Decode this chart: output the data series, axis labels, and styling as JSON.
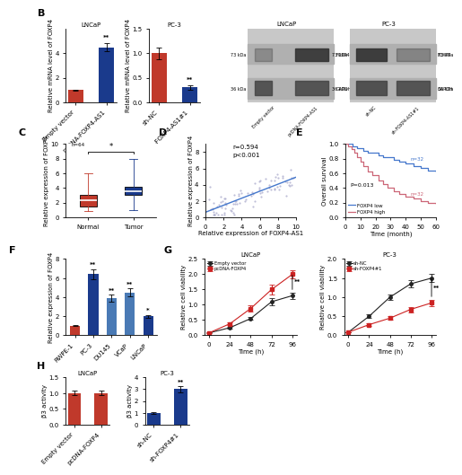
{
  "panel_A_LNCaP": {
    "categories": [
      "Empty vector",
      "pcDNA-FOXP4-AS1"
    ],
    "values": [
      1.0,
      4.5
    ],
    "errors": [
      0.05,
      0.35
    ],
    "colors": [
      "#c0392b",
      "#1a3a8c"
    ],
    "ylabel": "Relative mRNA level of FOXP4",
    "title": "LNCaP",
    "ylim": [
      0,
      6
    ],
    "yticks": [
      0,
      2,
      4
    ],
    "sig": "**"
  },
  "panel_A_PC3": {
    "categories": [
      "sh-NC",
      "sh-FOXP4-AS1#1"
    ],
    "values": [
      1.0,
      0.3
    ],
    "errors": [
      0.12,
      0.04
    ],
    "colors": [
      "#c0392b",
      "#1a3a8c"
    ],
    "ylabel": "Relative mRNA level of FOXP4",
    "title": "PC-3",
    "ylim": [
      0,
      1.5
    ],
    "yticks": [
      0.0,
      0.5,
      1.0,
      1.5
    ],
    "sig": "**"
  },
  "panel_C": {
    "normal_box": {
      "whislo": 0.8,
      "q1": 1.5,
      "med": 2.3,
      "q3": 3.0,
      "whishi": 6.0
    },
    "tumor_box": {
      "whislo": 1.0,
      "q1": 3.0,
      "med": 3.5,
      "q3": 4.2,
      "whishi": 8.0
    },
    "normal_color": "#c0392b",
    "tumor_color": "#1a3a8c",
    "ylabel": "Relative expression of FOXP4",
    "ylim": [
      0,
      10
    ],
    "yticks": [
      0,
      2,
      4,
      6,
      8,
      10
    ],
    "n_label": "n=64",
    "sig": "*"
  },
  "panel_D": {
    "r": 0.594,
    "p": "<0.001",
    "xlabel": "Relative expression of FOXP4-AS1",
    "ylabel": "Relative expression of FOXP4",
    "xlim": [
      0.0,
      10
    ],
    "ylim": [
      0.0,
      9
    ],
    "xticks": [
      0,
      2,
      4,
      6,
      8,
      10
    ],
    "yticks": [
      0,
      2,
      4,
      6,
      8
    ],
    "scatter_color": "#aaaacc",
    "line_color": "#4477cc"
  },
  "panel_E": {
    "xlabel": "Time (month)",
    "ylabel": "Overall survival",
    "xlim": [
      0,
      60
    ],
    "ylim": [
      0.0,
      1.0
    ],
    "xticks": [
      0,
      10,
      20,
      30,
      40,
      50,
      60
    ],
    "yticks": [
      0.0,
      0.2,
      0.4,
      0.6,
      0.8,
      1.0
    ],
    "low_color": "#4477cc",
    "high_color": "#cc6677",
    "n_low": 32,
    "n_high": 32,
    "p_value": "P=0.013",
    "t_low": [
      0,
      2,
      5,
      8,
      12,
      15,
      18,
      22,
      25,
      28,
      32,
      36,
      40,
      45,
      50,
      55,
      60
    ],
    "s_low": [
      1.0,
      1.0,
      0.97,
      0.94,
      0.91,
      0.88,
      0.88,
      0.85,
      0.82,
      0.82,
      0.79,
      0.76,
      0.73,
      0.7,
      0.67,
      0.64,
      0.62
    ],
    "t_high": [
      0,
      2,
      4,
      6,
      8,
      10,
      12,
      15,
      18,
      22,
      25,
      28,
      32,
      36,
      40,
      45,
      50,
      55,
      60
    ],
    "s_high": [
      1.0,
      0.97,
      0.93,
      0.88,
      0.82,
      0.76,
      0.7,
      0.63,
      0.57,
      0.5,
      0.45,
      0.4,
      0.36,
      0.32,
      0.28,
      0.25,
      0.22,
      0.2,
      0.18
    ]
  },
  "panel_F": {
    "categories": [
      "RWPE-1",
      "PC-3",
      "DU145",
      "VCaP",
      "LNCaP"
    ],
    "values": [
      1.0,
      6.4,
      3.9,
      4.5,
      2.0
    ],
    "errors": [
      0.05,
      0.55,
      0.35,
      0.4,
      0.15
    ],
    "colors": [
      "#c0392b",
      "#1a3a8c",
      "#4a7ab5",
      "#4a7ab5",
      "#1a3a8c"
    ],
    "ylabel": "Relative expression of FOXP4",
    "ylim": [
      0,
      8
    ],
    "yticks": [
      0,
      2,
      4,
      6,
      8
    ],
    "sigs": [
      "",
      "**",
      "**",
      "**",
      "*"
    ]
  },
  "panel_G_LNCaP": {
    "timepoints": [
      0,
      24,
      48,
      72,
      96
    ],
    "empty_vector": [
      0.08,
      0.25,
      0.55,
      1.1,
      1.3
    ],
    "empty_errors": [
      0.01,
      0.03,
      0.05,
      0.12,
      0.1
    ],
    "pcDNA": [
      0.08,
      0.38,
      0.88,
      1.5,
      2.0
    ],
    "pcDNA_errors": [
      0.01,
      0.04,
      0.09,
      0.16,
      0.14
    ],
    "black_color": "#222222",
    "red_color": "#cc2222",
    "xlabel": "Time (h)",
    "ylabel": "Relative cell viability",
    "title": "LNCaP",
    "ylim": [
      0,
      2.5
    ],
    "yticks": [
      0.0,
      0.5,
      1.0,
      1.5,
      2.0,
      2.5
    ],
    "sig": "**"
  },
  "panel_G_PC3": {
    "timepoints": [
      0,
      24,
      48,
      72,
      96
    ],
    "sh_NC": [
      0.08,
      0.5,
      1.0,
      1.35,
      1.5
    ],
    "sh_NC_errors": [
      0.01,
      0.05,
      0.08,
      0.1,
      0.1
    ],
    "sh_FOXP4": [
      0.08,
      0.28,
      0.45,
      0.68,
      0.85
    ],
    "sh_FOXP4_errors": [
      0.01,
      0.03,
      0.05,
      0.07,
      0.08
    ],
    "black_color": "#222222",
    "red_color": "#cc2222",
    "xlabel": "Time (h)",
    "ylabel": "Relative cell viability",
    "title": "PC-3",
    "ylim": [
      0,
      2.0
    ],
    "yticks": [
      0.0,
      0.5,
      1.0,
      1.5,
      2.0
    ],
    "sig": "**"
  },
  "panel_H_LNCaP": {
    "categories": [
      "Empty vector",
      "pcDNA-FOXP4"
    ],
    "values": [
      1.0,
      1.0
    ],
    "errors": [
      0.07,
      0.07
    ],
    "colors": [
      "#c0392b",
      "#c0392b"
    ],
    "ylabel": "β3 activity",
    "title": "LNCaP",
    "ylim": [
      0,
      1.5
    ],
    "yticks": [
      0.0,
      0.5,
      1.0,
      1.5
    ]
  },
  "panel_H_PC3": {
    "categories": [
      "sh-NC",
      "sh-FOXP4#1"
    ],
    "values": [
      1.0,
      3.0
    ],
    "errors": [
      0.1,
      0.25
    ],
    "colors": [
      "#1a3a8c",
      "#1a3a8c"
    ],
    "ylabel": "β3 activity",
    "title": "PC-3",
    "ylim": [
      0,
      4
    ],
    "yticks": [
      0,
      1,
      2,
      3,
      4
    ],
    "sig": "**"
  },
  "background_color": "#ffffff"
}
